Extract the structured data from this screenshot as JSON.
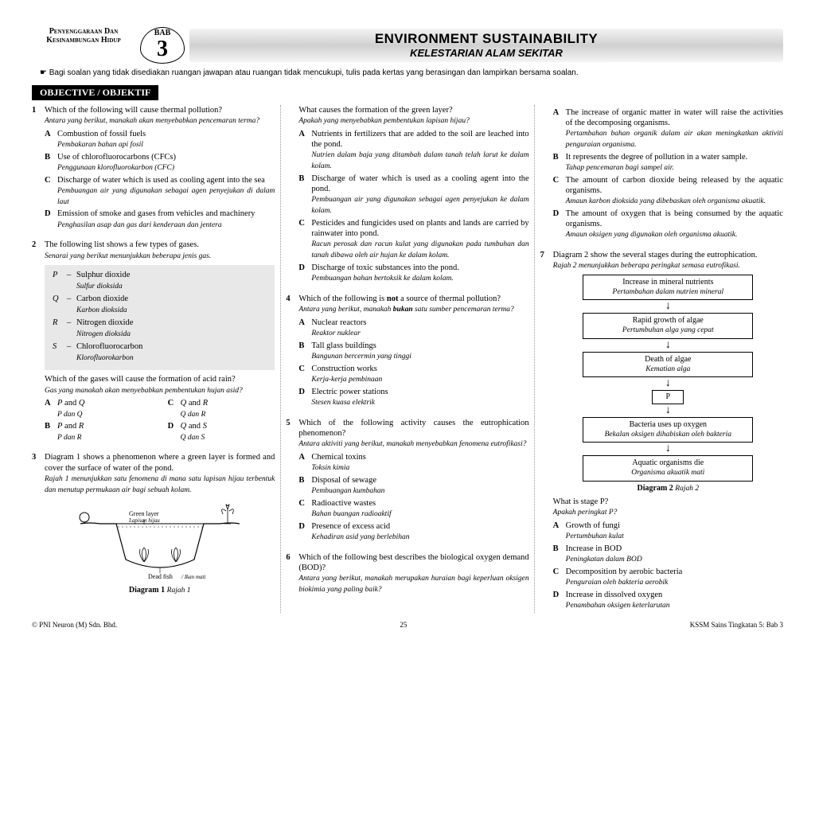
{
  "corner_label": "Penyenggaraan Dan Kesinambungan Hidup",
  "bab_word": "BAB",
  "bab_num": "3",
  "title_en": "ENVIRONMENT SUSTAINABILITY",
  "title_ms": "KELESTARIAN ALAM SEKITAR",
  "instruction": "Bagi soalan yang tidak disediakan ruangan jawapan atau ruangan tidak mencukupi, tulis pada kertas yang berasingan dan lampirkan bersama soalan.",
  "section": "OBJECTIVE / OBJEKTIF",
  "q1": {
    "num": "1",
    "en": "Which of the following will cause thermal pollution?",
    "ms": "Antara yang berikut, manakah akan menyebabkan pencemaran terma?",
    "opts": [
      {
        "l": "A",
        "en": "Combustion of fossil fuels",
        "ms": "Pembakaran bahan api fosil"
      },
      {
        "l": "B",
        "en": "Use of chlorofluorocarbons (CFCs)",
        "ms": "Penggunaan klorofluorokarbon (CFC)"
      },
      {
        "l": "C",
        "en": "Discharge of water which is used as cooling agent into the sea",
        "ms": "Pembuangan air yang digunakan sebagai agen penyejukan di dalam laut"
      },
      {
        "l": "D",
        "en": "Emission of smoke and gases from vehicles and machinery",
        "ms": "Penghasilan asap dan gas dari kenderaan dan jentera"
      }
    ]
  },
  "q2": {
    "num": "2",
    "en": "The following list shows a few types of gases.",
    "ms": "Senarai yang berikut menunjukkan beberapa jenis gas.",
    "gases": [
      {
        "s": "P",
        "en": "Sulphur dioxide",
        "ms": "Sulfur dioksida"
      },
      {
        "s": "Q",
        "en": "Carbon dioxide",
        "ms": "Karbon dioksida"
      },
      {
        "s": "R",
        "en": "Nitrogen dioxide",
        "ms": "Nitrogen dioksida"
      },
      {
        "s": "S",
        "en": "Chlorofluorocarbon",
        "ms": "Klorofluorokarbon"
      }
    ],
    "sub_en": "Which of the gases will cause the formation of acid rain?",
    "sub_ms": "Gas yang manakah akan menyebabkan pembentukan hujan asid?",
    "opts2": [
      {
        "l": "A",
        "en": "P and Q",
        "ms": "P dan Q"
      },
      {
        "l": "B",
        "en": "P and R",
        "ms": "P dan R"
      },
      {
        "l": "C",
        "en": "Q and R",
        "ms": "Q dan R"
      },
      {
        "l": "D",
        "en": "Q and S",
        "ms": "Q dan S"
      }
    ]
  },
  "q3": {
    "num": "3",
    "en": "Diagram 1 shows a phenomenon where a green layer is formed and cover the surface of water of the pond.",
    "ms": "Rajah 1 menunjukkan satu fenomena di mana satu lapisan hijau terbentuk dan menutup permukaan air bagi sebuah kolam.",
    "green_en": "Green layer",
    "green_ms": "Lapisan hijau",
    "dead_en": "Dead fish",
    "dead_ms": "Ikan mati",
    "caption_en": "Diagram 1",
    "caption_ms": "Rajah 1",
    "sub_en": "What causes the formation of the green layer?",
    "sub_ms": "Apakah yang menyebabkan pembentukan lapisan hijau?",
    "opts": [
      {
        "l": "A",
        "en": "Nutrients in fertilizers that are added to the soil are leached into the pond.",
        "ms": "Nutrien dalam baja yang ditambah dalam tanah telah larut ke dalam kolam."
      },
      {
        "l": "B",
        "en": "Discharge of water which is used as a cooling agent into the pond.",
        "ms": "Pembuangan air yang digunakan sebagai agen penyejukan ke dalam kolam."
      },
      {
        "l": "C",
        "en": "Pesticides and fungicides used on plants and lands are carried by rainwater into pond.",
        "ms": "Racun perosak dan racun kulat yang digunakan pada tumbuhan dan tanah dibawa oleh air hujan ke dalam kolam."
      },
      {
        "l": "D",
        "en": "Discharge of toxic substances into the pond.",
        "ms": "Pembuangan bahan bertoksik ke dalam kolam."
      }
    ]
  },
  "q4": {
    "num": "4",
    "en": "Which of the following is <b>not</b> a source of thermal pollution?",
    "ms": "Antara yang berikut, manakah <b>bukan</b> satu sumber pencemaran terma?",
    "opts": [
      {
        "l": "A",
        "en": "Nuclear reactors",
        "ms": "Reaktor nuklear"
      },
      {
        "l": "B",
        "en": "Tall glass buildings",
        "ms": "Bangunan bercermin yang tinggi"
      },
      {
        "l": "C",
        "en": "Construction works",
        "ms": "Kerja-kerja pembinaan"
      },
      {
        "l": "D",
        "en": "Electric power stations",
        "ms": "Stesen kuasa elektrik"
      }
    ]
  },
  "q5": {
    "num": "5",
    "en": "Which of the following activity causes the eutrophication phenomenon?",
    "ms": "Antara aktiviti yang berikut, manakah menyebabkan fenomena eutrofikasi?",
    "opts": [
      {
        "l": "A",
        "en": "Chemical toxins",
        "ms": "Toksin kimia"
      },
      {
        "l": "B",
        "en": "Disposal of sewage",
        "ms": "Pembuangan kumbahan"
      },
      {
        "l": "C",
        "en": "Radioactive wastes",
        "ms": "Bahan buangan radioaktif"
      },
      {
        "l": "D",
        "en": "Presence of excess acid",
        "ms": "Kehadiran asid yang berlebihan"
      }
    ]
  },
  "q6": {
    "num": "6",
    "en": "Which of the following best describes the biological oxygen demand (BOD)?",
    "ms": "Antara yang berikut, manakah merupakan huraian bagi keperluan oksigen biokimia yang paling baik?",
    "opts": [
      {
        "l": "A",
        "en": "The increase of organic matter in water will raise the activities of the decomposing organisms.",
        "ms": "Pertambahan bahan organik dalam air akan meningkatkan aktiviti penguraian organisma."
      },
      {
        "l": "B",
        "en": "It represents the degree of pollution in a water sample.",
        "ms": "Tahap pencemaran bagi sampel air."
      },
      {
        "l": "C",
        "en": "The amount of carbon dioxide being released by the aquatic organisms.",
        "ms": "Amaun karbon dioksida yang dibebaskan oleh organisma akuatik."
      },
      {
        "l": "D",
        "en": "The amount of oxygen that is being consumed by the aquatic organisms.",
        "ms": "Amaun oksigen yang digunakan oleh organisma akuatik."
      }
    ]
  },
  "q7": {
    "num": "7",
    "en": "Diagram 2 show the several stages during the eutrophication.",
    "ms": "Rajah 2 menunjukkan beberapa peringkat semasa eutrofikasi.",
    "flow": [
      {
        "en": "Increase in mineral nutrients",
        "ms": "Pertambahan dalam nutrien mineral"
      },
      {
        "en": "Rapid growth of algae",
        "ms": "Pertumbuhan alga yang cepat"
      },
      {
        "en": "Death of algae",
        "ms": "Kematian alga"
      },
      {
        "en": "P",
        "ms": ""
      },
      {
        "en": "Bacteria uses up oxygen",
        "ms": "Bekalan oksigen dihabiskan oleh bakteria"
      },
      {
        "en": "Aquatic organisms die",
        "ms": "Organisma akuatik mati"
      }
    ],
    "caption_en": "Diagram 2",
    "caption_ms": "Rajah 2",
    "sub_en": "What is stage P?",
    "sub_ms": "Apakah peringkat P?",
    "opts": [
      {
        "l": "A",
        "en": "Growth of fungi",
        "ms": "Pertumbuhan kulat"
      },
      {
        "l": "B",
        "en": "Increase in BOD",
        "ms": "Peningkatan dalam BOD"
      },
      {
        "l": "C",
        "en": "Decomposition by aerobic bacteria",
        "ms": "Penguraian oleh bakteria aerobik"
      },
      {
        "l": "D",
        "en": "Increase in dissolved oxygen",
        "ms": "Penambahan oksigen keterlarutan"
      }
    ]
  },
  "footer_left": "© PNI Neuron (M) Sdn. Bhd.",
  "footer_center": "25",
  "footer_right": "KSSM Sains Tingkatan 5: Bab 3"
}
